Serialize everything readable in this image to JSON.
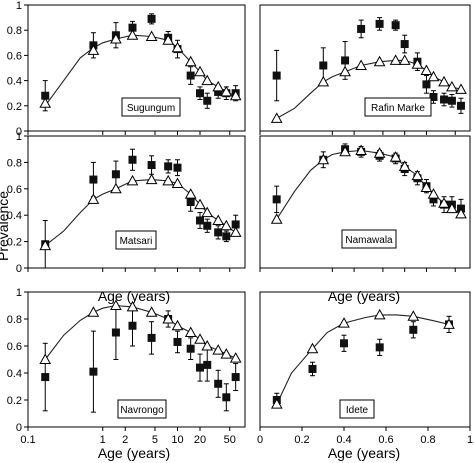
{
  "figure": {
    "ylabel": "Prevalence",
    "xlabel": "Age (years)"
  },
  "chart_data": [
    {
      "type": "scatter",
      "site": "Sugungum",
      "xscale": "log",
      "xlim": [
        0.1,
        80
      ],
      "ylim": [
        0,
        1
      ],
      "xticks": [],
      "yticks": [
        0,
        0.2,
        0.4,
        0.6,
        0.8,
        1
      ],
      "grid": false,
      "series": [
        {
          "marker": "filled-square",
          "x": [
            0.17,
            0.75,
            1.5,
            2.5,
            4.5,
            7.5,
            10,
            15,
            20,
            25,
            35,
            45,
            60
          ],
          "y": [
            0.28,
            0.68,
            0.76,
            0.82,
            0.89,
            0.74,
            0.65,
            0.44,
            0.3,
            0.24,
            0.31,
            0.3,
            0.3
          ],
          "err": [
            0.12,
            0.1,
            0.1,
            0.05,
            0.04,
            0.05,
            0.07,
            0.07,
            0.05,
            0.06,
            0.05,
            0.05,
            0.06
          ]
        },
        {
          "marker": "open-triangle",
          "x": [
            0.17,
            0.75,
            1.5,
            2.5,
            4.5,
            7.5,
            10,
            15,
            20,
            25,
            35,
            45,
            60
          ],
          "y": [
            0.22,
            0.64,
            0.73,
            0.76,
            0.75,
            0.72,
            0.66,
            0.55,
            0.47,
            0.4,
            0.35,
            0.31,
            0.28
          ]
        },
        {
          "line": "model",
          "x": [
            0.17,
            0.3,
            0.5,
            0.75,
            1,
            1.5,
            2.5,
            4.5,
            7.5,
            10,
            15,
            20,
            25,
            35,
            45,
            60
          ],
          "y": [
            0.2,
            0.4,
            0.58,
            0.66,
            0.7,
            0.73,
            0.76,
            0.75,
            0.72,
            0.66,
            0.55,
            0.47,
            0.4,
            0.35,
            0.31,
            0.28
          ]
        }
      ]
    },
    {
      "type": "scatter",
      "site": "Rafin Marke",
      "xscale": "log",
      "xlim": [
        0.1,
        80
      ],
      "ylim": [
        0,
        1
      ],
      "xticks": [],
      "yticks": [],
      "grid": false,
      "series": [
        {
          "marker": "filled-square",
          "x": [
            0.17,
            0.75,
            1.5,
            2.5,
            4.5,
            7.5,
            10,
            15,
            20,
            25,
            35,
            45,
            60
          ],
          "y": [
            0.44,
            0.52,
            0.56,
            0.81,
            0.85,
            0.84,
            0.69,
            0.55,
            0.37,
            0.27,
            0.25,
            0.24,
            0.2
          ],
          "err": [
            0.2,
            0.14,
            0.15,
            0.07,
            0.05,
            0.04,
            0.07,
            0.07,
            0.07,
            0.05,
            0.05,
            0.05,
            0.06
          ]
        },
        {
          "marker": "open-triangle",
          "x": [
            0.17,
            0.75,
            1.5,
            2.5,
            4.5,
            7.5,
            10,
            15,
            20,
            25,
            35,
            45,
            60
          ],
          "y": [
            0.1,
            0.39,
            0.47,
            0.52,
            0.55,
            0.56,
            0.56,
            0.53,
            0.48,
            0.43,
            0.39,
            0.35,
            0.33
          ]
        },
        {
          "line": "model",
          "x": [
            0.17,
            0.3,
            0.5,
            0.75,
            1,
            1.5,
            2.5,
            4.5,
            7.5,
            10,
            15,
            20,
            25,
            35,
            45,
            60
          ],
          "y": [
            0.1,
            0.18,
            0.3,
            0.39,
            0.43,
            0.47,
            0.52,
            0.55,
            0.56,
            0.56,
            0.53,
            0.48,
            0.43,
            0.39,
            0.35,
            0.33
          ]
        }
      ]
    },
    {
      "type": "scatter",
      "site": "Matsari",
      "xscale": "log",
      "xlim": [
        0.1,
        80
      ],
      "ylim": [
        0,
        1
      ],
      "xticks": [],
      "yticks": [
        0,
        0.2,
        0.4,
        0.6,
        0.8,
        1
      ],
      "grid": false,
      "series": [
        {
          "marker": "filled-square",
          "x": [
            0.17,
            0.75,
            1.5,
            2.5,
            4.5,
            7.5,
            10,
            15,
            20,
            25,
            35,
            45,
            60
          ],
          "y": [
            0.18,
            0.67,
            0.71,
            0.82,
            0.78,
            0.77,
            0.76,
            0.5,
            0.36,
            0.32,
            0.27,
            0.24,
            0.33
          ],
          "err": [
            0.18,
            0.13,
            0.1,
            0.08,
            0.07,
            0.05,
            0.06,
            0.07,
            0.06,
            0.05,
            0.05,
            0.04,
            0.07
          ]
        },
        {
          "marker": "open-triangle",
          "x": [
            0.17,
            0.75,
            1.5,
            2.5,
            4.5,
            7.5,
            10,
            15,
            20,
            25,
            35,
            45,
            60
          ],
          "y": [
            0.17,
            0.52,
            0.6,
            0.66,
            0.67,
            0.66,
            0.64,
            0.56,
            0.48,
            0.42,
            0.36,
            0.32,
            0.27
          ]
        },
        {
          "line": "model",
          "x": [
            0.17,
            0.3,
            0.5,
            0.75,
            1,
            1.5,
            2.5,
            4.5,
            7.5,
            10,
            15,
            20,
            25,
            35,
            45,
            60
          ],
          "y": [
            0.17,
            0.28,
            0.42,
            0.52,
            0.56,
            0.6,
            0.66,
            0.67,
            0.66,
            0.64,
            0.56,
            0.48,
            0.42,
            0.36,
            0.32,
            0.27
          ]
        }
      ]
    },
    {
      "type": "scatter",
      "site": "Namawala",
      "xscale": "log",
      "xlim": [
        0.1,
        80
      ],
      "ylim": [
        0,
        1
      ],
      "xticks": [],
      "yticks": [],
      "grid": false,
      "series": [
        {
          "marker": "filled-square",
          "x": [
            0.17,
            0.75,
            1.5,
            2.5,
            4.5,
            7.5,
            10,
            15,
            20,
            25,
            35,
            45,
            60
          ],
          "y": [
            0.52,
            0.82,
            0.9,
            0.88,
            0.85,
            0.83,
            0.75,
            0.68,
            0.62,
            0.52,
            0.48,
            0.48,
            0.45
          ],
          "err": [
            0.1,
            0.06,
            0.04,
            0.04,
            0.04,
            0.04,
            0.05,
            0.05,
            0.05,
            0.05,
            0.06,
            0.06,
            0.07
          ]
        },
        {
          "marker": "open-triangle",
          "x": [
            0.17,
            0.75,
            1.5,
            2.5,
            4.5,
            7.5,
            10,
            15,
            20,
            25,
            35,
            45,
            60
          ],
          "y": [
            0.37,
            0.82,
            0.88,
            0.89,
            0.87,
            0.84,
            0.77,
            0.7,
            0.61,
            0.56,
            0.49,
            0.45,
            0.41
          ]
        },
        {
          "line": "model",
          "x": [
            0.17,
            0.3,
            0.5,
            0.75,
            1,
            1.5,
            2.5,
            4.5,
            7.5,
            10,
            15,
            20,
            25,
            35,
            45,
            60
          ],
          "y": [
            0.37,
            0.58,
            0.74,
            0.82,
            0.86,
            0.88,
            0.89,
            0.87,
            0.84,
            0.77,
            0.7,
            0.61,
            0.56,
            0.49,
            0.45,
            0.41
          ]
        }
      ]
    },
    {
      "type": "scatter",
      "site": "Navrongo",
      "xscale": "log",
      "xlim": [
        0.1,
        80
      ],
      "ylim": [
        0,
        1
      ],
      "xticks": [
        0.1,
        1,
        2,
        5,
        10,
        20,
        50
      ],
      "yticks": [
        0,
        0.2,
        0.4,
        0.6,
        0.8,
        1
      ],
      "grid": false,
      "series": [
        {
          "marker": "filled-square",
          "x": [
            0.17,
            0.75,
            1.5,
            2.5,
            4.5,
            7.5,
            10,
            15,
            20,
            25,
            35,
            45,
            60
          ],
          "y": [
            0.37,
            0.41,
            0.7,
            0.75,
            0.66,
            0.8,
            0.63,
            0.58,
            0.44,
            0.46,
            0.32,
            0.22,
            0.37
          ],
          "err": [
            0.25,
            0.3,
            0.2,
            0.15,
            0.12,
            0.06,
            0.08,
            0.08,
            0.1,
            0.12,
            0.1,
            0.1,
            0.1
          ]
        },
        {
          "marker": "open-triangle",
          "x": [
            0.17,
            0.75,
            1.5,
            2.5,
            4.5,
            7.5,
            10,
            15,
            20,
            25,
            35,
            45,
            60
          ],
          "y": [
            0.5,
            0.85,
            0.9,
            0.89,
            0.85,
            0.8,
            0.75,
            0.7,
            0.65,
            0.6,
            0.57,
            0.54,
            0.51
          ]
        },
        {
          "line": "model",
          "x": [
            0.17,
            0.3,
            0.5,
            0.75,
            1,
            1.5,
            2.5,
            4.5,
            7.5,
            10,
            15,
            20,
            25,
            35,
            45,
            60
          ],
          "y": [
            0.5,
            0.68,
            0.79,
            0.85,
            0.88,
            0.9,
            0.89,
            0.85,
            0.8,
            0.75,
            0.7,
            0.65,
            0.6,
            0.57,
            0.54,
            0.51
          ]
        }
      ]
    },
    {
      "type": "scatter",
      "site": "Idete",
      "xscale": "linear",
      "xlim": [
        0,
        1
      ],
      "ylim": [
        0,
        1
      ],
      "xticks": [
        0,
        0.2,
        0.4,
        0.6,
        0.8,
        1
      ],
      "yticks": [],
      "grid": false,
      "series": [
        {
          "marker": "filled-square",
          "x": [
            0.08,
            0.25,
            0.4,
            0.57,
            0.73,
            0.9
          ],
          "y": [
            0.2,
            0.43,
            0.62,
            0.59,
            0.72,
            0.76
          ],
          "err": [
            0.05,
            0.05,
            0.06,
            0.06,
            0.06,
            0.06
          ]
        },
        {
          "marker": "open-triangle",
          "x": [
            0.08,
            0.25,
            0.4,
            0.57,
            0.73,
            0.9
          ],
          "y": [
            0.17,
            0.58,
            0.77,
            0.83,
            0.82,
            0.76
          ]
        },
        {
          "line": "model",
          "x": [
            0.08,
            0.15,
            0.25,
            0.32,
            0.4,
            0.5,
            0.57,
            0.65,
            0.73,
            0.82,
            0.9
          ],
          "y": [
            0.17,
            0.4,
            0.58,
            0.7,
            0.77,
            0.81,
            0.83,
            0.83,
            0.82,
            0.79,
            0.76
          ]
        }
      ]
    }
  ]
}
